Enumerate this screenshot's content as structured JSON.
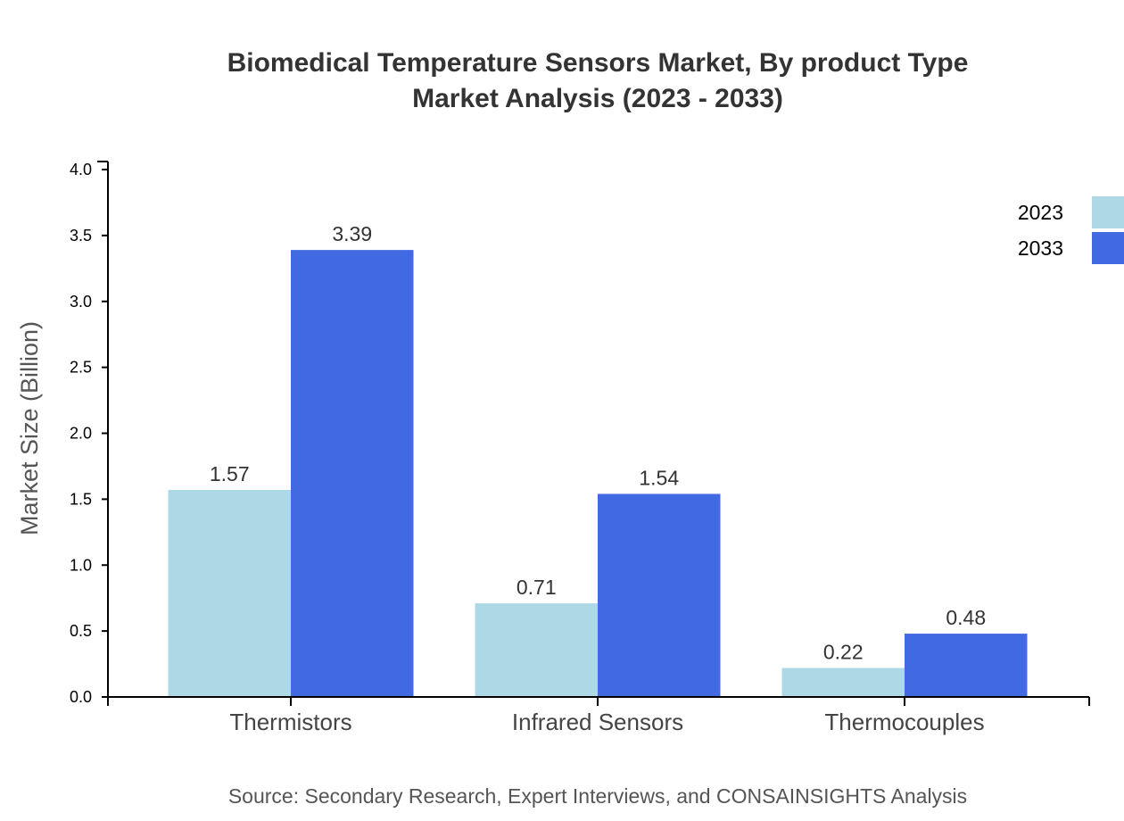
{
  "chart_data": {
    "type": "bar",
    "title_line1": "Biomedical Temperature Sensors Market, By product Type",
    "title_line2": "Market Analysis (2023 - 2033)",
    "ylabel": "Market Size (Billion)",
    "xlabel": "",
    "ylim": [
      0,
      4.0
    ],
    "yticks": [
      "0.0",
      "0.5",
      "1.0",
      "1.5",
      "2.0",
      "2.5",
      "3.0",
      "3.5",
      "4.0"
    ],
    "categories": [
      "Thermistors",
      "Infrared Sensors",
      "Thermocouples"
    ],
    "series": [
      {
        "name": "2023",
        "color": "#add8e6",
        "values": [
          1.57,
          0.71,
          0.22
        ]
      },
      {
        "name": "2033",
        "color": "#4169e1",
        "values": [
          3.39,
          1.54,
          0.48
        ]
      }
    ],
    "legend_position": "top-right",
    "grid": false,
    "source": "Source: Secondary Research, Expert Interviews, and CONSAINSIGHTS Analysis"
  }
}
